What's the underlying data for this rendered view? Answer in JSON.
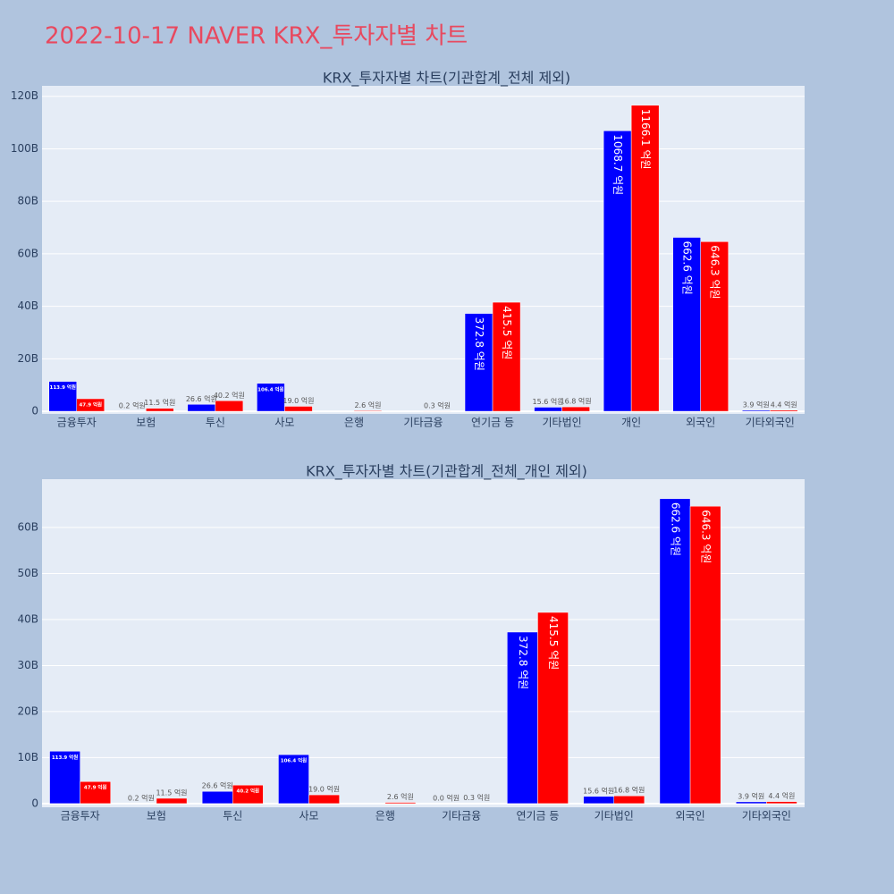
{
  "title": "2022-10-17 NAVER KRX_투자자별 차트",
  "chart_data": [
    {
      "type": "bar",
      "title": "KRX_투자자별 차트(기관합계_전체 제외)",
      "categories": [
        "금융투자",
        "보험",
        "투신",
        "사모",
        "은행",
        "기타금융",
        "연기금 등",
        "기타법인",
        "개인",
        "외국인",
        "기타외국인"
      ],
      "series": [
        {
          "color": "#0000ff",
          "values": [
            11390000000,
            20000000,
            2660000000,
            10640000000,
            null,
            null,
            37280000000,
            1560000000,
            106870000000,
            66260000000,
            390000000
          ],
          "value_labels": [
            "113.9 억원",
            "0.2 억원",
            "26.6 억원",
            "106.4 억원",
            null,
            null,
            "372.8 억원",
            "15.6 억원",
            "1068.7 억원",
            "662.6 억원",
            "3.9 억원"
          ]
        },
        {
          "color": "#ff0000",
          "values": [
            4790000000,
            1150000000,
            4020000000,
            1900000000,
            260000000,
            30000000,
            41550000000,
            1680000000,
            116610000000,
            64630000000,
            440000000
          ],
          "value_labels": [
            "47.9 억원",
            "11.5 억원",
            "40.2 억원",
            "19.0 억원",
            "2.6 억원",
            "0.3 억원",
            "415.5 억원",
            "16.8 억원",
            "1166.1 억원",
            "646.3 억원",
            "4.4 억원"
          ]
        }
      ],
      "ylim": [
        -1000000000,
        124000000000
      ],
      "yticks": [
        0,
        {
          "value": 20000000000,
          "label": "20B"
        },
        {
          "value": 40000000000,
          "label": "40B"
        },
        {
          "value": 60000000000,
          "label": "60B"
        },
        {
          "value": 80000000000,
          "label": "80B"
        },
        {
          "value": 100000000000,
          "label": "100B"
        },
        {
          "value": 120000000000,
          "label": "120B"
        }
      ],
      "grid": true
    },
    {
      "type": "bar",
      "title": "KRX_투자자별 차트(기관합계_전체_개인 제외)",
      "categories": [
        "금융투자",
        "보험",
        "투신",
        "사모",
        "은행",
        "기타금융",
        "연기금 등",
        "기타법인",
        "외국인",
        "기타외국인"
      ],
      "series": [
        {
          "color": "#0000ff",
          "values": [
            11390000000,
            20000000,
            2660000000,
            10640000000,
            null,
            0,
            37280000000,
            1560000000,
            66260000000,
            390000000
          ],
          "value_labels": [
            "113.9 억원",
            "0.2 억원",
            "26.6 억원",
            "106.4 억원",
            null,
            "0.0 억원",
            "372.8 억원",
            "15.6 억원",
            "662.6 억원",
            "3.9 억원"
          ]
        },
        {
          "color": "#ff0000",
          "values": [
            4790000000,
            1150000000,
            4020000000,
            1900000000,
            260000000,
            30000000,
            41550000000,
            1680000000,
            64630000000,
            440000000
          ],
          "value_labels": [
            "47.9 억원",
            "11.5 억원",
            "40.2 억원",
            "19.0 억원",
            "2.6 억원",
            "0.3 억원",
            "415.5 억원",
            "16.8 억원",
            "646.3 억원",
            "4.4 억원"
          ]
        }
      ],
      "ylim": [
        -800000000,
        70500000000
      ],
      "yticks": [
        0,
        {
          "value": 10000000000,
          "label": "10B"
        },
        {
          "value": 20000000000,
          "label": "20B"
        },
        {
          "value": 30000000000,
          "label": "30B"
        },
        {
          "value": 40000000000,
          "label": "40B"
        },
        {
          "value": 50000000000,
          "label": "50B"
        },
        {
          "value": 60000000000,
          "label": "60B"
        }
      ],
      "grid": true
    }
  ]
}
